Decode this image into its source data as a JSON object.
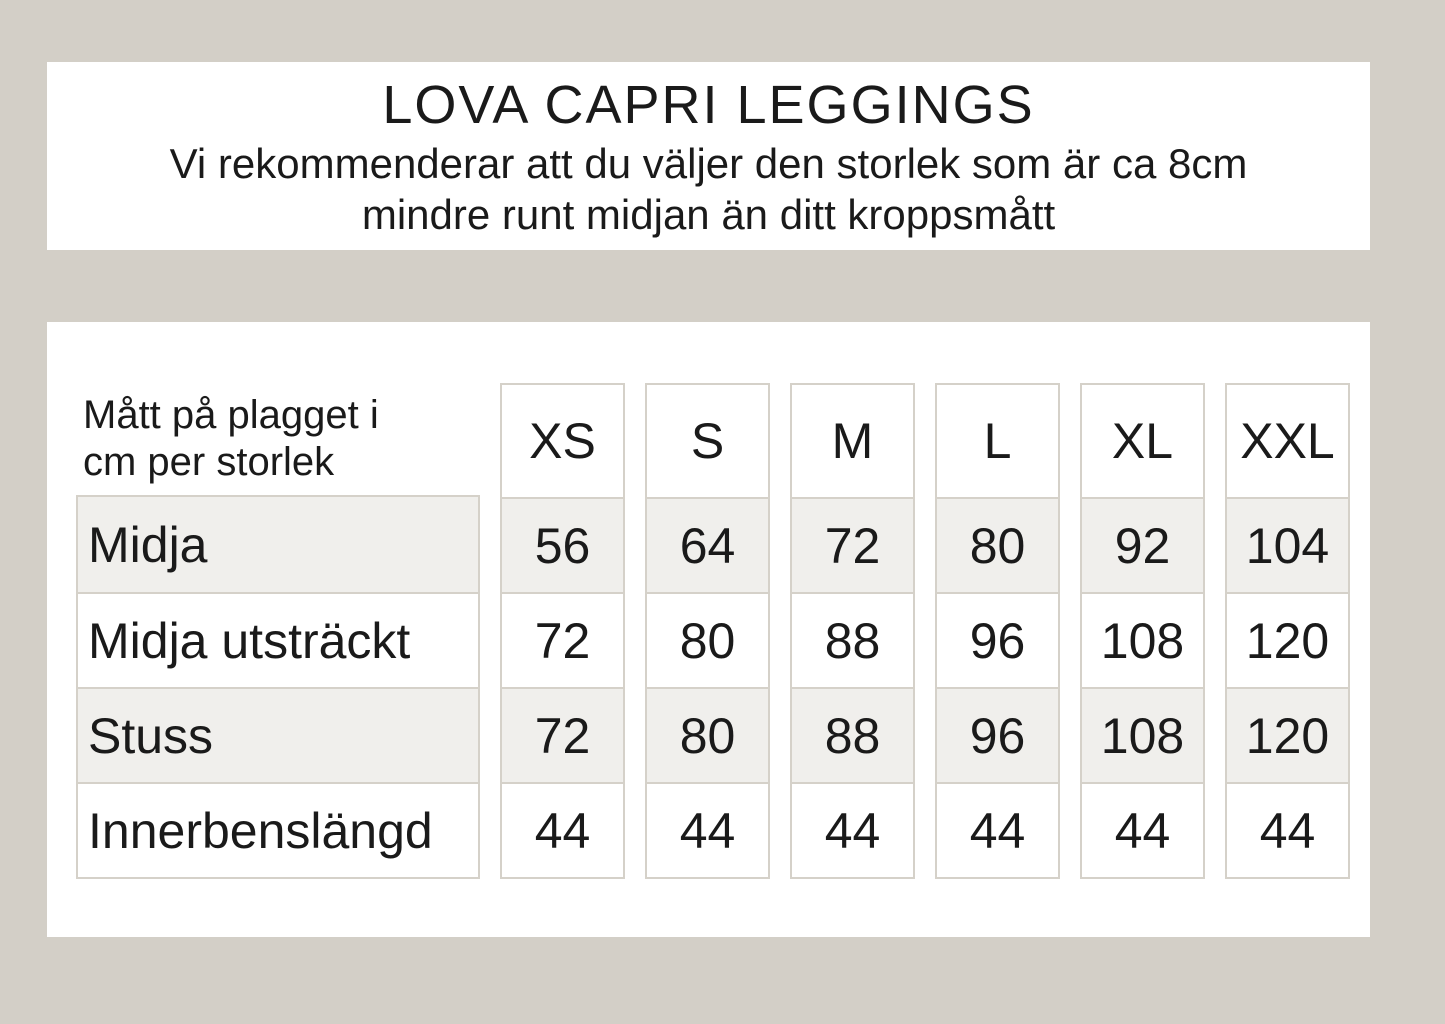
{
  "colors": {
    "background": "#d3cfc7",
    "panel": "#ffffff",
    "stripe": "#f0efec",
    "border": "#d5d1c9",
    "text": "#1a1a1a"
  },
  "header": {
    "title": "LOVA CAPRI LEGGINGS",
    "subtitle_lines": [
      "Vi rekommenderar att du väljer den storlek som är ca 8cm",
      "mindre runt midjan än ditt kroppsmått"
    ]
  },
  "table": {
    "corner_label_lines": [
      "Mått på plagget i",
      "cm per storlek"
    ],
    "unit": "cm",
    "sizes": [
      "XS",
      "S",
      "M",
      "L",
      "XL",
      "XXL"
    ],
    "rows": [
      {
        "label": "Midja",
        "values": [
          56,
          64,
          72,
          80,
          92,
          104
        ]
      },
      {
        "label": "Midja utsträckt",
        "values": [
          72,
          80,
          88,
          96,
          108,
          120
        ]
      },
      {
        "label": "Stuss",
        "values": [
          72,
          80,
          88,
          96,
          108,
          120
        ]
      },
      {
        "label": "Innerbenslängd",
        "values": [
          44,
          44,
          44,
          44,
          44,
          44
        ]
      }
    ]
  }
}
